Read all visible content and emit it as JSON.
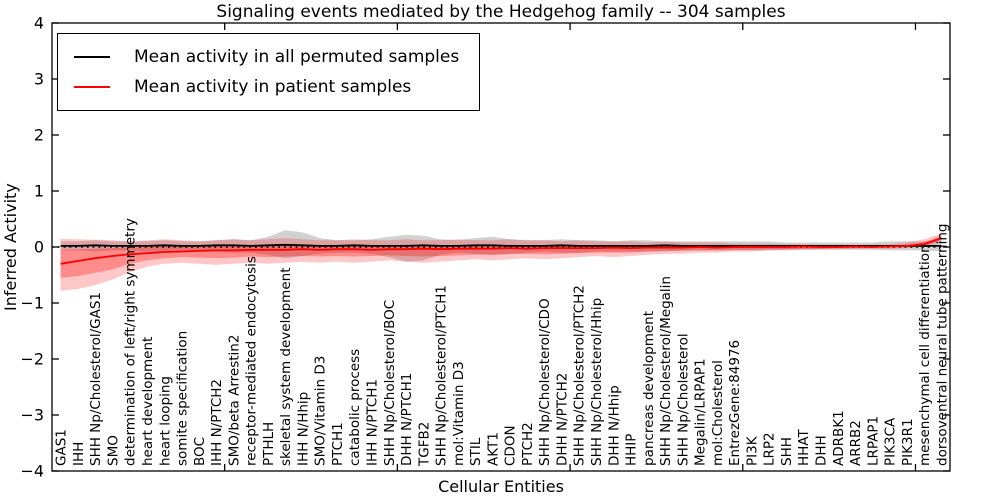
{
  "chart_data": {
    "type": "line",
    "title": "Signaling events mediated by the Hedgehog family -- 304 samples",
    "xlabel": "Cellular Entities",
    "ylabel": "Inferred Activity",
    "ylim": [
      -4,
      4
    ],
    "ytick_values": [
      4,
      3,
      2,
      1,
      0,
      -1,
      -2,
      -3,
      -4
    ],
    "ytick_labels": [
      "4",
      "3",
      "2",
      "1",
      "0",
      "−1",
      "−2",
      "−3",
      "−4"
    ],
    "xticks_numeric": [
      10,
      20,
      30,
      40,
      50
    ],
    "grid": false,
    "legend_position": "upper left",
    "categories": [
      "GAS1",
      "IHH",
      "SHH Np/Cholesterol/GAS1",
      "SMO",
      "determination of left/right symmetry",
      "heart development",
      "heart looping",
      "somite specification",
      "BOC",
      "IHH N/PTCH2",
      "SMO/beta Arrestin2",
      "receptor-mediated endocytosis",
      "PTHLH",
      "skeletal system development",
      "IHH N/Hhip",
      "SMO/Vitamin D3",
      "PTCH1",
      "catabolic process",
      "IHH N/PTCH1",
      "SHH Np/Cholesterol/BOC",
      "DHH N/PTCH1",
      "TGFB2",
      "SHH Np/Cholesterol/PTCH1",
      "mol:Vitamin D3",
      "STIL",
      "AKT1",
      "CDON",
      "PTCH2",
      "SHH Np/Cholesterol/CDO",
      "DHH N/PTCH2",
      "SHH Np/Cholesterol/PTCH2",
      "SHH Np/Cholesterol/Hhip",
      "DHH N/Hhip",
      "HHIP",
      "pancreas development",
      "SHH Np/Cholesterol/Megalin",
      "SHH Np/Cholesterol",
      "Megalin/LRPAP1",
      "mol:Cholesterol",
      "EntrezGene:84976",
      "PI3K",
      "LRP2",
      "SHH",
      "HHAT",
      "DHH",
      "ADRBK1",
      "ARRB2",
      "LRPAP1",
      "PIK3CA",
      "PIK3R1",
      "mesenchymal cell differentiation",
      "dorsoventral neural tube patterning"
    ],
    "series": [
      {
        "name": "Mean activity in all permuted samples",
        "color": "#000000",
        "values": [
          0.02,
          0.02,
          0.03,
          0.02,
          0.02,
          0.02,
          0.03,
          0.02,
          0.02,
          0.03,
          0.03,
          0.02,
          0.03,
          0.04,
          0.03,
          0.02,
          0.02,
          0.03,
          0.02,
          0.02,
          0.02,
          0.03,
          0.02,
          0.02,
          0.03,
          0.03,
          0.02,
          0.02,
          0.02,
          0.03,
          0.02,
          0.02,
          0.02,
          0.02,
          0.02,
          0.03,
          0.02,
          0.02,
          0.02,
          0.02,
          0.02,
          0.02,
          0.02,
          0.02,
          0.02,
          0.02,
          0.02,
          0.02,
          0.02,
          0.02,
          0.02,
          0.02
        ]
      },
      {
        "name": "Mean activity in patient samples",
        "color": "#ff0000",
        "values": [
          -0.3,
          -0.25,
          -0.2,
          -0.16,
          -0.13,
          -0.11,
          -0.09,
          -0.08,
          -0.07,
          -0.06,
          -0.06,
          -0.05,
          -0.05,
          -0.05,
          -0.04,
          -0.05,
          -0.04,
          -0.04,
          -0.05,
          -0.04,
          -0.04,
          -0.03,
          -0.04,
          -0.03,
          -0.03,
          -0.03,
          -0.02,
          -0.03,
          -0.02,
          -0.02,
          -0.02,
          -0.02,
          -0.01,
          -0.02,
          -0.01,
          -0.01,
          -0.01,
          0.0,
          -0.01,
          0.0,
          0.0,
          0.0,
          0.0,
          0.01,
          0.0,
          0.0,
          0.01,
          0.0,
          0.01,
          0.02,
          0.05,
          0.16
        ]
      }
    ],
    "bands": [
      {
        "name": "permuted-samples-band",
        "color": "#999999",
        "opacity": 0.45,
        "hi": [
          0.1,
          0.1,
          0.12,
          0.1,
          0.1,
          0.1,
          0.12,
          0.1,
          0.1,
          0.12,
          0.14,
          0.12,
          0.18,
          0.3,
          0.26,
          0.16,
          0.12,
          0.12,
          0.14,
          0.18,
          0.22,
          0.2,
          0.14,
          0.12,
          0.16,
          0.18,
          0.14,
          0.12,
          0.12,
          0.14,
          0.12,
          0.12,
          0.1,
          0.12,
          0.12,
          0.1,
          0.1,
          0.1,
          0.1,
          0.1,
          0.1,
          0.1,
          0.08,
          0.08,
          0.08,
          0.08,
          0.08,
          0.08,
          0.1,
          0.1,
          0.1,
          0.12
        ],
        "lo": [
          -0.06,
          -0.06,
          -0.08,
          -0.06,
          -0.06,
          -0.08,
          -0.08,
          -0.06,
          -0.06,
          -0.08,
          -0.1,
          -0.1,
          -0.14,
          -0.2,
          -0.16,
          -0.12,
          -0.1,
          -0.1,
          -0.12,
          -0.18,
          -0.26,
          -0.24,
          -0.14,
          -0.1,
          -0.12,
          -0.14,
          -0.12,
          -0.1,
          -0.08,
          -0.1,
          -0.1,
          -0.08,
          -0.08,
          -0.08,
          -0.08,
          -0.08,
          -0.06,
          -0.06,
          -0.06,
          -0.06,
          -0.06,
          -0.06,
          -0.05,
          -0.05,
          -0.05,
          -0.05,
          -0.05,
          -0.05,
          -0.06,
          -0.06,
          -0.06,
          -0.08
        ]
      },
      {
        "name": "patient-samples-band-outer",
        "color": "#ff0000",
        "opacity": 0.22,
        "hi": [
          0.15,
          0.14,
          0.13,
          0.12,
          0.1,
          0.12,
          0.14,
          0.12,
          0.1,
          0.12,
          0.14,
          0.12,
          0.14,
          0.16,
          0.14,
          0.12,
          0.12,
          0.14,
          0.12,
          0.12,
          0.14,
          0.12,
          0.12,
          0.14,
          0.12,
          0.12,
          0.14,
          0.12,
          0.12,
          0.1,
          0.12,
          0.1,
          0.1,
          0.1,
          0.08,
          0.1,
          0.08,
          0.08,
          0.08,
          0.06,
          0.06,
          0.06,
          0.05,
          0.05,
          0.04,
          0.04,
          0.04,
          0.04,
          0.05,
          0.08,
          0.14,
          0.24
        ],
        "lo": [
          -0.78,
          -0.75,
          -0.68,
          -0.58,
          -0.45,
          -0.35,
          -0.3,
          -0.28,
          -0.3,
          -0.32,
          -0.3,
          -0.28,
          -0.3,
          -0.28,
          -0.26,
          -0.28,
          -0.26,
          -0.28,
          -0.26,
          -0.24,
          -0.26,
          -0.28,
          -0.26,
          -0.24,
          -0.22,
          -0.24,
          -0.22,
          -0.2,
          -0.22,
          -0.2,
          -0.18,
          -0.16,
          -0.18,
          -0.16,
          -0.14,
          -0.12,
          -0.12,
          -0.1,
          -0.1,
          -0.08,
          -0.08,
          -0.06,
          -0.06,
          -0.05,
          -0.04,
          -0.04,
          -0.03,
          -0.03,
          -0.03,
          -0.02,
          0.0,
          0.08
        ]
      },
      {
        "name": "patient-samples-band-inner",
        "color": "#ff0000",
        "opacity": 0.3,
        "hi": [
          -0.05,
          -0.04,
          -0.03,
          -0.02,
          -0.01,
          0.0,
          0.02,
          0.02,
          0.01,
          0.02,
          0.03,
          0.03,
          0.04,
          0.05,
          0.04,
          0.03,
          0.03,
          0.04,
          0.03,
          0.03,
          0.04,
          0.03,
          0.03,
          0.04,
          0.03,
          0.03,
          0.04,
          0.03,
          0.03,
          0.02,
          0.03,
          0.02,
          0.03,
          0.02,
          0.02,
          0.03,
          0.02,
          0.02,
          0.02,
          0.02,
          0.02,
          0.02,
          0.02,
          0.02,
          0.01,
          0.01,
          0.02,
          0.01,
          0.02,
          0.04,
          0.09,
          0.2
        ],
        "lo": [
          -0.55,
          -0.52,
          -0.46,
          -0.4,
          -0.3,
          -0.24,
          -0.2,
          -0.18,
          -0.19,
          -0.2,
          -0.19,
          -0.17,
          -0.18,
          -0.17,
          -0.16,
          -0.17,
          -0.16,
          -0.17,
          -0.16,
          -0.15,
          -0.16,
          -0.17,
          -0.16,
          -0.15,
          -0.14,
          -0.14,
          -0.13,
          -0.12,
          -0.13,
          -0.12,
          -0.11,
          -0.1,
          -0.1,
          -0.1,
          -0.08,
          -0.07,
          -0.07,
          -0.06,
          -0.06,
          -0.05,
          -0.05,
          -0.04,
          -0.04,
          -0.03,
          -0.03,
          -0.02,
          -0.02,
          -0.01,
          -0.01,
          0.0,
          0.02,
          0.12
        ]
      }
    ],
    "zero_line": {
      "value": 0,
      "style": "dotted",
      "color": "#000000"
    }
  }
}
